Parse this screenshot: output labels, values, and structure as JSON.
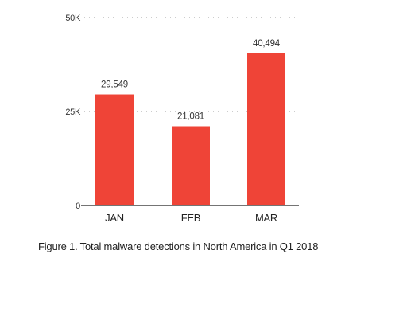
{
  "chart_data": {
    "type": "bar",
    "categories": [
      "JAN",
      "FEB",
      "MAR"
    ],
    "values": [
      29549,
      21081,
      40494
    ],
    "value_labels": [
      "29,549",
      "21,081",
      "40,494"
    ],
    "yticks": [
      0,
      25000,
      50000
    ],
    "ytick_labels": [
      "0",
      "25K",
      "50K"
    ],
    "ylim": [
      0,
      50000
    ],
    "grid": "dotted",
    "bar_color": "#ef4437",
    "title": "",
    "xlabel": "",
    "ylabel": ""
  },
  "caption": "Figure 1. Total malware detections in North America in Q1 2018"
}
